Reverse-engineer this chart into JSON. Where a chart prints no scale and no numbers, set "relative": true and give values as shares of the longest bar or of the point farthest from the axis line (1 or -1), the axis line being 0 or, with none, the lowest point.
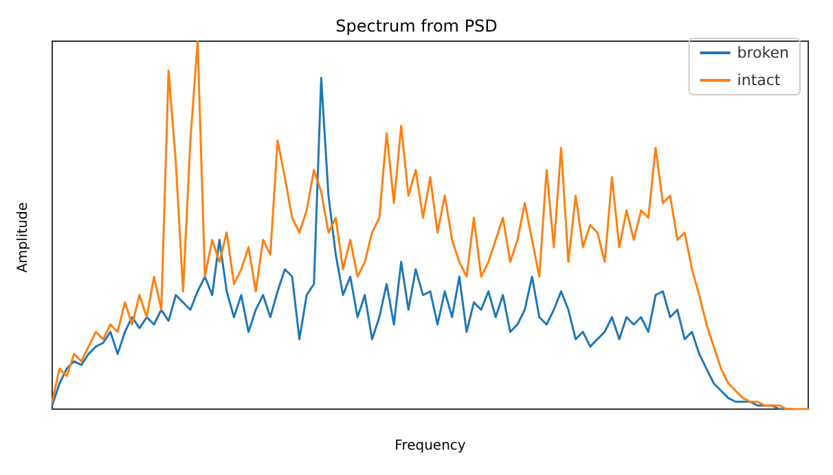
{
  "chart_data": {
    "type": "line",
    "title": "Spectrum from PSD",
    "xlabel": "Frequency",
    "ylabel": "Amplitude",
    "relative": true,
    "legend": "top right",
    "grid": false,
    "marker": "none",
    "line_style": "solid",
    "categories": [
      null,
      null,
      null,
      null,
      null,
      null,
      null,
      null,
      null,
      null,
      null,
      null,
      null,
      null,
      null,
      null,
      null,
      null,
      null,
      null,
      null,
      null,
      null,
      null,
      null,
      null,
      null,
      null,
      null,
      null,
      null,
      null,
      null,
      null,
      null,
      null,
      null,
      null,
      null,
      null,
      null,
      null,
      null,
      null,
      null,
      null,
      null,
      null,
      null,
      null,
      null,
      null,
      null,
      null,
      null,
      null,
      null,
      null,
      null,
      null,
      null,
      null,
      null,
      null,
      null,
      null,
      null,
      null,
      null,
      null,
      null,
      null,
      null,
      null,
      null,
      null,
      null,
      null,
      null,
      null,
      null,
      null,
      null,
      null,
      null,
      null,
      null,
      null,
      null,
      null,
      null,
      null,
      null,
      null,
      null,
      null,
      null,
      null,
      null,
      null,
      null,
      null,
      null,
      null,
      null
    ],
    "series": [
      {
        "name": "broken",
        "color": "#1f77b4",
        "values": [
          0.01,
          0.07,
          0.11,
          0.13,
          0.12,
          0.15,
          0.17,
          0.18,
          0.21,
          0.15,
          0.21,
          0.25,
          0.22,
          0.25,
          0.23,
          0.27,
          0.24,
          0.31,
          0.29,
          0.27,
          0.32,
          0.36,
          0.31,
          0.46,
          0.32,
          0.25,
          0.31,
          0.21,
          0.27,
          0.31,
          0.25,
          0.32,
          0.38,
          0.36,
          0.19,
          0.31,
          0.34,
          0.9,
          0.58,
          0.42,
          0.31,
          0.36,
          0.25,
          0.31,
          0.19,
          0.25,
          0.34,
          0.23,
          0.4,
          0.27,
          0.38,
          0.31,
          0.32,
          0.23,
          0.32,
          0.25,
          0.36,
          0.21,
          0.29,
          0.27,
          0.32,
          0.25,
          0.31,
          0.21,
          0.23,
          0.27,
          0.36,
          0.25,
          0.23,
          0.27,
          0.32,
          0.27,
          0.19,
          0.21,
          0.17,
          0.19,
          0.21,
          0.25,
          0.19,
          0.25,
          0.23,
          0.25,
          0.21,
          0.31,
          0.32,
          0.25,
          0.27,
          0.19,
          0.21,
          0.15,
          0.11,
          0.07,
          0.05,
          0.03,
          0.02,
          0.02,
          0.02,
          0.01,
          0.01,
          0.01,
          0,
          0,
          0,
          null,
          null
        ]
      },
      {
        "name": "intact",
        "color": "#ff7f0e",
        "values": [
          0.02,
          0.11,
          0.09,
          0.15,
          0.13,
          0.17,
          0.21,
          0.19,
          0.23,
          0.21,
          0.29,
          0.23,
          0.31,
          0.25,
          0.36,
          0.27,
          0.92,
          0.67,
          0.32,
          0.73,
          1,
          0.36,
          0.46,
          0.4,
          0.48,
          0.34,
          0.38,
          0.44,
          0.32,
          0.46,
          0.42,
          0.73,
          0.63,
          0.52,
          0.48,
          0.54,
          0.65,
          0.59,
          0.48,
          0.52,
          0.38,
          0.46,
          0.36,
          0.4,
          0.48,
          0.52,
          0.75,
          0.56,
          0.77,
          0.58,
          0.65,
          0.52,
          0.63,
          0.48,
          0.58,
          0.46,
          0.4,
          0.36,
          0.52,
          0.36,
          0.4,
          0.46,
          0.52,
          0.4,
          0.46,
          0.56,
          0.46,
          0.36,
          0.65,
          0.44,
          0.71,
          0.4,
          0.58,
          0.44,
          0.5,
          0.48,
          0.4,
          0.63,
          0.44,
          0.54,
          0.46,
          0.54,
          0.52,
          0.71,
          0.56,
          0.58,
          0.46,
          0.48,
          0.38,
          0.31,
          0.23,
          0.17,
          0.11,
          0.07,
          0.05,
          0.03,
          0.02,
          0.02,
          0.01,
          0.01,
          0.01,
          0,
          0,
          0,
          0
        ]
      }
    ]
  }
}
